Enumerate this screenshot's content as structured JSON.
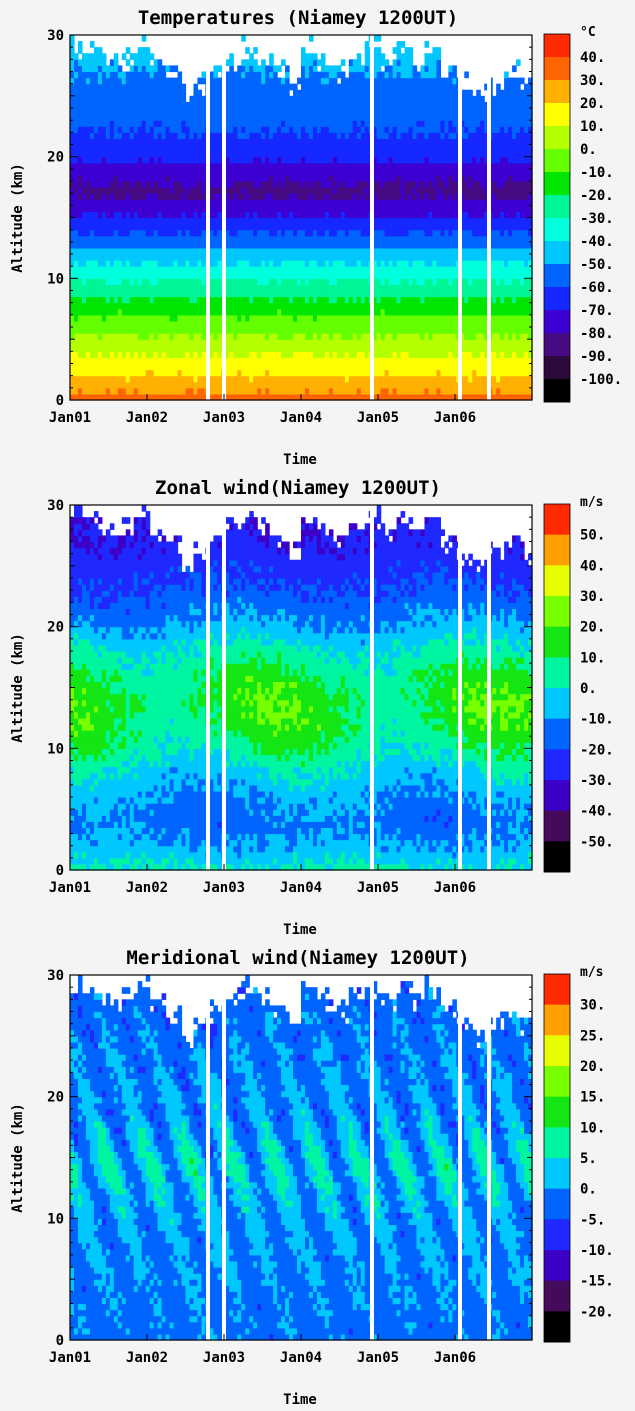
{
  "chart_data": [
    {
      "type": "heatmap",
      "title": "Temperatures (Niamey 1200UT)",
      "xlabel": "Time",
      "ylabel": "Altitude (km)",
      "x_ticks": [
        "Jan01",
        "Jan02",
        "Jan03",
        "Jan04",
        "Jan05",
        "Jan06"
      ],
      "y_ticks": [
        "0",
        "10",
        "20",
        "30"
      ],
      "ylim": [
        0,
        30
      ],
      "colorbar": {
        "unit": "°C",
        "labels": [
          "40.",
          "30.",
          "20.",
          "10.",
          "0.",
          "-10.",
          "-20.",
          "-30.",
          "-40.",
          "-50.",
          "-60.",
          "-70.",
          "-80.",
          "-90.",
          "-100."
        ],
        "colors": [
          "#ff2a00",
          "#ff6400",
          "#ffb000",
          "#ffff00",
          "#b4ff00",
          "#64ff00",
          "#00e600",
          "#00f596",
          "#00ffdc",
          "#00c8ff",
          "#0064ff",
          "#1428ff",
          "#3c00d2",
          "#460a82",
          "#2d0a3c",
          "#000000"
        ]
      },
      "profile": [
        {
          "alt": 0,
          "value": 34
        },
        {
          "alt": 1,
          "value": 27
        },
        {
          "alt": 2,
          "value": 20
        },
        {
          "alt": 3,
          "value": 14
        },
        {
          "alt": 4,
          "value": 8
        },
        {
          "alt": 5,
          "value": 2
        },
        {
          "alt": 6,
          "value": -4
        },
        {
          "alt": 7,
          "value": -10
        },
        {
          "alt": 8,
          "value": -17
        },
        {
          "alt": 9,
          "value": -24
        },
        {
          "alt": 10,
          "value": -31
        },
        {
          "alt": 11,
          "value": -38
        },
        {
          "alt": 12,
          "value": -46
        },
        {
          "alt": 13,
          "value": -54
        },
        {
          "alt": 14,
          "value": -62
        },
        {
          "alt": 15,
          "value": -69
        },
        {
          "alt": 16,
          "value": -76
        },
        {
          "alt": 17,
          "value": -82
        },
        {
          "alt": 18,
          "value": -80
        },
        {
          "alt": 19,
          "value": -74
        },
        {
          "alt": 20,
          "value": -67
        },
        {
          "alt": 21,
          "value": -63
        },
        {
          "alt": 22,
          "value": -60
        },
        {
          "alt": 23,
          "value": -58
        },
        {
          "alt": 24,
          "value": -56
        },
        {
          "alt": 25,
          "value": -54
        },
        {
          "alt": 26,
          "value": -52
        },
        {
          "alt": 27,
          "value": -50
        },
        {
          "alt": 28,
          "value": -48
        },
        {
          "alt": 29,
          "value": -46
        },
        {
          "alt": 30,
          "value": -44
        }
      ]
    },
    {
      "type": "heatmap",
      "title": "Zonal wind(Niamey 1200UT)",
      "xlabel": "Time",
      "ylabel": "Altitude (km)",
      "x_ticks": [
        "Jan01",
        "Jan02",
        "Jan03",
        "Jan04",
        "Jan05",
        "Jan06"
      ],
      "y_ticks": [
        "0",
        "10",
        "20",
        "30"
      ],
      "ylim": [
        0,
        30
      ],
      "colorbar": {
        "unit": "m/s",
        "labels": [
          "50.",
          "40.",
          "30.",
          "20.",
          "10.",
          "0.",
          "-10.",
          "-20.",
          "-30.",
          "-40.",
          "-50."
        ],
        "colors": [
          "#ff2a00",
          "#ffa000",
          "#e6ff00",
          "#78ff00",
          "#14e614",
          "#00f5a0",
          "#00c8ff",
          "#0064ff",
          "#1e28ff",
          "#3c00c8",
          "#460a5a",
          "#000000"
        ]
      },
      "profile": [
        {
          "alt": 0,
          "value": 2
        },
        {
          "alt": 2,
          "value": -8
        },
        {
          "alt": 4,
          "value": -14
        },
        {
          "alt": 6,
          "value": -10
        },
        {
          "alt": 8,
          "value": -3
        },
        {
          "alt": 10,
          "value": 6
        },
        {
          "alt": 12,
          "value": 12
        },
        {
          "alt": 14,
          "value": 14
        },
        {
          "alt": 16,
          "value": 10
        },
        {
          "alt": 18,
          "value": 2
        },
        {
          "alt": 20,
          "value": -8
        },
        {
          "alt": 22,
          "value": -16
        },
        {
          "alt": 24,
          "value": -22
        },
        {
          "alt": 26,
          "value": -26
        },
        {
          "alt": 28,
          "value": -30
        },
        {
          "alt": 30,
          "value": -28
        }
      ]
    },
    {
      "type": "heatmap",
      "title": "Meridional wind(Niamey 1200UT)",
      "xlabel": "Time",
      "ylabel": "Altitude (km)",
      "x_ticks": [
        "Jan01",
        "Jan02",
        "Jan03",
        "Jan04",
        "Jan05",
        "Jan06"
      ],
      "y_ticks": [
        "0",
        "10",
        "20",
        "30"
      ],
      "ylim": [
        0,
        30
      ],
      "colorbar": {
        "unit": "m/s",
        "labels": [
          "30.",
          "25.",
          "20.",
          "15.",
          "10.",
          "5.",
          "0.",
          "-5.",
          "-10.",
          "-15.",
          "-20."
        ],
        "colors": [
          "#ff2a00",
          "#ffa000",
          "#e6ff00",
          "#78ff00",
          "#14e614",
          "#00f5a0",
          "#00c8ff",
          "#0064ff",
          "#1e28ff",
          "#3c00c8",
          "#460a5a",
          "#000000"
        ]
      },
      "profile": [
        {
          "alt": 0,
          "value": -2
        },
        {
          "alt": 5,
          "value": -1
        },
        {
          "alt": 10,
          "value": 0
        },
        {
          "alt": 14,
          "value": 3
        },
        {
          "alt": 18,
          "value": 0
        },
        {
          "alt": 22,
          "value": -1
        },
        {
          "alt": 26,
          "value": -2
        },
        {
          "alt": 30,
          "value": -3
        }
      ]
    }
  ]
}
